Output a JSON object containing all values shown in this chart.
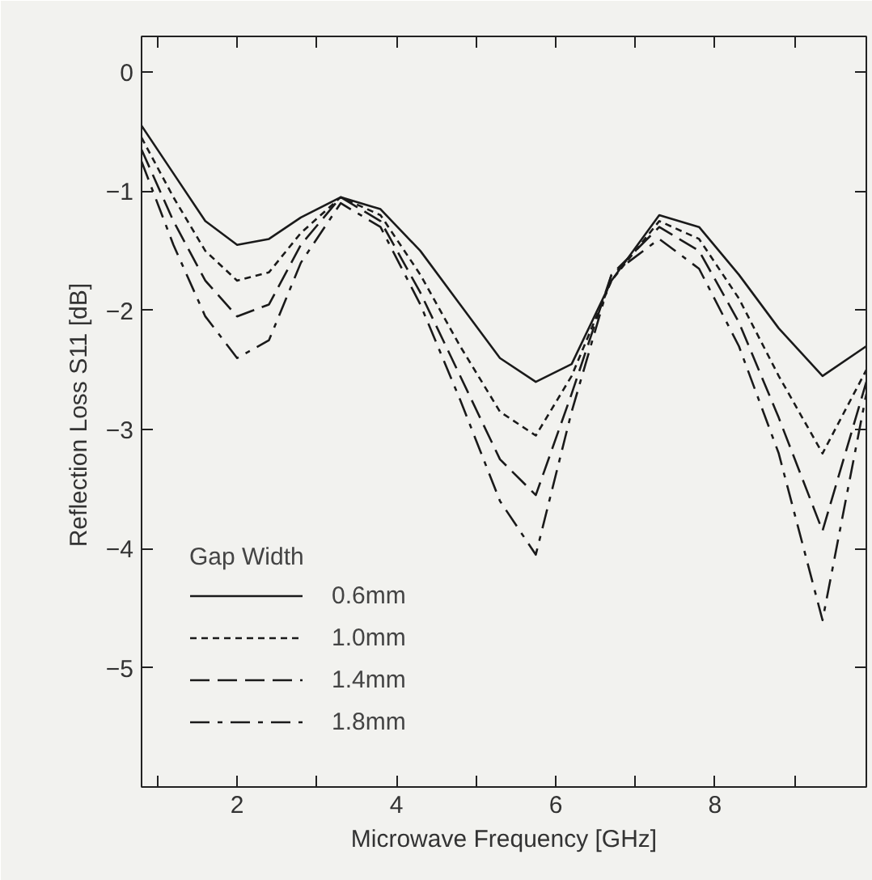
{
  "chart_data": {
    "type": "line",
    "xlabel": "Microwave Frequency [GHz]",
    "ylabel": "Reflection Loss  S11 [dB]",
    "legend_title": "Gap Width",
    "legend": "bottom left",
    "grid": false,
    "marker": "none",
    "x": [
      0.8,
      1.2,
      1.6,
      2.0,
      2.4,
      2.8,
      3.3,
      3.8,
      4.3,
      4.8,
      5.3,
      5.75,
      6.2,
      6.7,
      7.3,
      7.8,
      8.3,
      8.8,
      9.35,
      9.9
    ],
    "xlim": [
      0.8,
      9.9
    ],
    "ylim": [
      -6,
      0.3
    ],
    "xticks": [
      {
        "value": 1,
        "label": null
      },
      2,
      {
        "value": 3,
        "label": null
      },
      4,
      {
        "value": 5,
        "label": null
      },
      6,
      {
        "value": 7,
        "label": null
      },
      8,
      {
        "value": 9,
        "label": null
      }
    ],
    "yticks": [
      -5,
      -4,
      -3,
      -2,
      -1,
      0
    ],
    "series": [
      {
        "name": "0.6mm",
        "color": "#1a1a1a",
        "line_style": "solid",
        "values": [
          -0.45,
          -0.85,
          -1.25,
          -1.45,
          -1.4,
          -1.22,
          -1.05,
          -1.15,
          -1.5,
          -1.95,
          -2.4,
          -2.6,
          -2.45,
          -1.75,
          -1.2,
          -1.3,
          -1.7,
          -2.15,
          -2.55,
          -2.3
        ]
      },
      {
        "name": "1.0mm",
        "color": "#1a1a1a",
        "line_style": "dotted",
        "values": [
          -0.55,
          -1.05,
          -1.5,
          -1.75,
          -1.68,
          -1.35,
          -1.05,
          -1.2,
          -1.7,
          -2.3,
          -2.85,
          -3.05,
          -2.55,
          -1.75,
          -1.25,
          -1.4,
          -1.9,
          -2.55,
          -3.2,
          -2.5
        ]
      },
      {
        "name": "1.4mm",
        "color": "#1a1a1a",
        "line_style": "dashed",
        "values": [
          -0.65,
          -1.25,
          -1.75,
          -2.05,
          -1.95,
          -1.45,
          -1.05,
          -1.25,
          -1.85,
          -2.55,
          -3.25,
          -3.55,
          -2.7,
          -1.7,
          -1.3,
          -1.5,
          -2.1,
          -2.9,
          -3.85,
          -2.6
        ]
      },
      {
        "name": "1.8mm",
        "color": "#1a1a1a",
        "line_style": "dashdot",
        "values": [
          -0.75,
          -1.45,
          -2.05,
          -2.4,
          -2.25,
          -1.6,
          -1.1,
          -1.3,
          -1.95,
          -2.75,
          -3.6,
          -4.05,
          -2.85,
          -1.7,
          -1.4,
          -1.65,
          -2.3,
          -3.2,
          -4.6,
          -2.7
        ]
      }
    ]
  }
}
